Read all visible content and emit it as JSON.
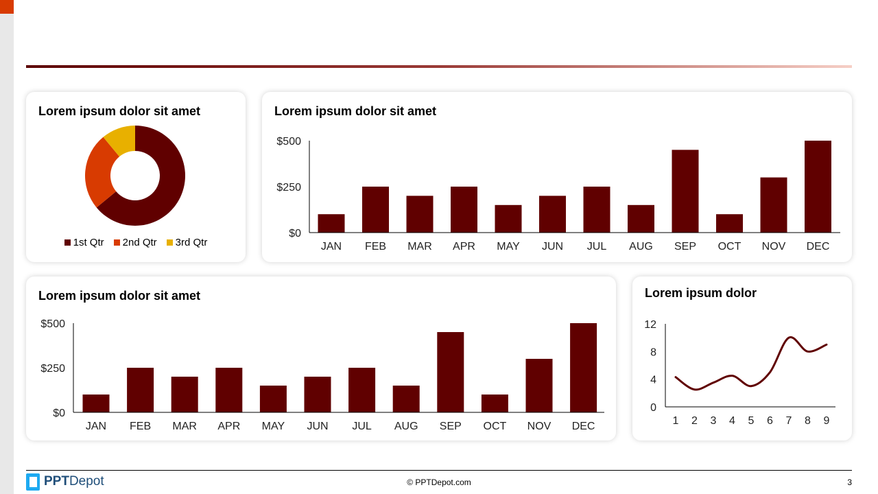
{
  "colors": {
    "bar": "#600000",
    "q1": "#600000",
    "q2": "#d83b01",
    "q3": "#e8b000",
    "accent": "#d83b01"
  },
  "donut": {
    "title": "Lorem ipsum dolor sit amet",
    "chart_data": {
      "type": "pie",
      "donut": true,
      "categories": [
        "1st Qtr",
        "2nd Qtr",
        "3rd Qtr"
      ],
      "values": [
        64,
        25,
        11
      ],
      "legend": "bottom"
    }
  },
  "bar_top": {
    "title": "Lorem ipsum dolor sit amet",
    "chart_data": {
      "type": "bar",
      "categories": [
        "JAN",
        "FEB",
        "MAR",
        "APR",
        "MAY",
        "JUN",
        "JUL",
        "AUG",
        "SEP",
        "OCT",
        "NOV",
        "DEC"
      ],
      "values": [
        100,
        250,
        200,
        250,
        150,
        200,
        250,
        150,
        450,
        100,
        300,
        500
      ],
      "yticks": [
        "$0",
        "$250",
        "$500"
      ],
      "ylim": [
        0,
        500
      ]
    }
  },
  "bar_bottom": {
    "title": "Lorem ipsum dolor sit amet",
    "chart_data": {
      "type": "bar",
      "categories": [
        "JAN",
        "FEB",
        "MAR",
        "APR",
        "MAY",
        "JUN",
        "JUL",
        "AUG",
        "SEP",
        "OCT",
        "NOV",
        "DEC"
      ],
      "values": [
        100,
        250,
        200,
        250,
        150,
        200,
        250,
        150,
        450,
        100,
        300,
        500
      ],
      "yticks": [
        "$0",
        "$250",
        "$500"
      ],
      "ylim": [
        0,
        500
      ]
    }
  },
  "line": {
    "title": "Lorem ipsum dolor",
    "chart_data": {
      "type": "line",
      "smooth": true,
      "x": [
        1,
        2,
        3,
        4,
        5,
        6,
        7,
        8,
        9
      ],
      "values": [
        4.3,
        2.5,
        3.5,
        4.5,
        3,
        5,
        10,
        8,
        9
      ],
      "yticks": [
        "0",
        "4",
        "8",
        "12"
      ],
      "ylim": [
        0,
        12
      ]
    }
  },
  "footer": {
    "logo_bold": "PPT",
    "logo_light": "Depot",
    "copyright": "© PPTDepot.com",
    "page": "3"
  }
}
